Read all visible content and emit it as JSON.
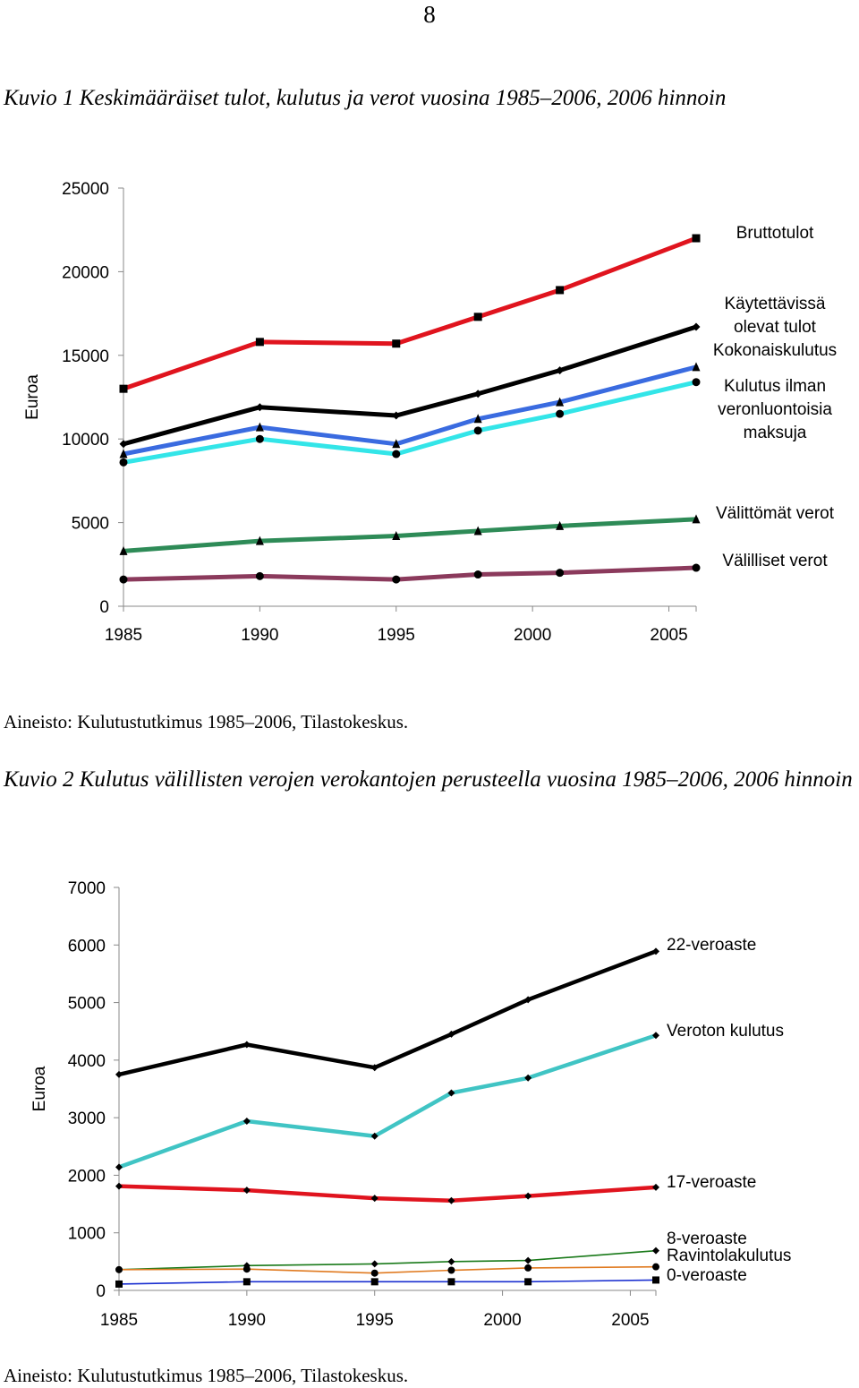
{
  "page": {
    "number": "8"
  },
  "figure1": {
    "title": "Kuvio 1 Keskimääräiset tulot, kulutus ja verot vuosina 1985–2006, 2006 hinnoin",
    "source": "Aineisto: Kulutustutkimus 1985–2006, Tilastokeskus."
  },
  "figure2": {
    "title": "Kuvio 2 Kulutus välillisten verojen verokantojen perusteella vuosina 1985–2006, 2006 hinnoin",
    "source": "Aineisto: Kulutustutkimus 1985–2006, Tilastokeskus."
  },
  "chart_data": [
    {
      "type": "line",
      "title": "",
      "xlabel": "",
      "ylabel": "Euroa",
      "xlim": [
        1985,
        2006
      ],
      "ylim": [
        0,
        25000
      ],
      "x_ticks": [
        "1985",
        "1990",
        "1995",
        "2000",
        "2005"
      ],
      "y_ticks": [
        "0",
        "5000",
        "10000",
        "15000",
        "20000",
        "25000"
      ],
      "grid": false,
      "legend": "right, labels at line ends",
      "x": [
        1985,
        1990,
        1995,
        1998,
        2001,
        2006
      ],
      "series": [
        {
          "name": "Bruttotulot",
          "label_lines": [
            "Bruttotulot"
          ],
          "color": "#e0141e",
          "marker": "square",
          "values": [
            13000,
            15800,
            15700,
            17300,
            18900,
            22000
          ]
        },
        {
          "name": "Käytettävissä olevat tulot",
          "label_lines": [
            "Käytettävissä",
            "olevat tulot"
          ],
          "color": "#000000",
          "marker": "diamond",
          "values": [
            9700,
            11900,
            11400,
            12700,
            14100,
            16700
          ]
        },
        {
          "name": "Kokonaiskulutus",
          "label_lines": [
            "Kokonaiskulutus"
          ],
          "color": "#3a6be0",
          "marker": "triangle",
          "values": [
            9100,
            10700,
            9700,
            11200,
            12200,
            14300
          ]
        },
        {
          "name": "Kulutus ilman veronluontoisia maksuja",
          "label_lines": [
            "Kulutus ilman",
            "veronluontoisia",
            "maksuja"
          ],
          "color": "#33e5e8",
          "marker": "circle",
          "values": [
            8600,
            10000,
            9100,
            10500,
            11500,
            13400
          ]
        },
        {
          "name": "Välittömät verot",
          "label_lines": [
            "Välittömät verot"
          ],
          "color": "#2e8b57",
          "marker": "triangle",
          "values": [
            3300,
            3900,
            4200,
            4500,
            4800,
            5200
          ]
        },
        {
          "name": "Välilliset verot",
          "label_lines": [
            "Välilliset verot"
          ],
          "color": "#8b3a5c",
          "marker": "circle",
          "values": [
            1600,
            1800,
            1600,
            1900,
            2000,
            2300
          ]
        }
      ]
    },
    {
      "type": "line",
      "title": "",
      "xlabel": "",
      "ylabel": "Euroa",
      "xlim": [
        1985,
        2006
      ],
      "ylim": [
        0,
        7000
      ],
      "x_ticks": [
        "1985",
        "1990",
        "1995",
        "2000",
        "2005"
      ],
      "y_ticks": [
        "0",
        "1000",
        "2000",
        "3000",
        "4000",
        "5000",
        "6000",
        "7000"
      ],
      "grid": false,
      "legend": "right, labels at line ends",
      "x": [
        1985,
        1990,
        1995,
        1998,
        2001,
        2006
      ],
      "series": [
        {
          "name": "22-veroaste",
          "label_lines": [
            "22-veroaste"
          ],
          "color": "#000000",
          "marker": "diamond",
          "values": [
            3750,
            4270,
            3870,
            4450,
            5050,
            5890
          ]
        },
        {
          "name": "Veroton kulutus",
          "label_lines": [
            "Veroton kulutus"
          ],
          "color": "#40c4c4",
          "marker": "diamond",
          "values": [
            2140,
            2940,
            2680,
            3430,
            3690,
            4430
          ]
        },
        {
          "name": "17-veroaste",
          "label_lines": [
            "17-veroaste"
          ],
          "color": "#e0141e",
          "marker": "diamond",
          "values": [
            1810,
            1740,
            1600,
            1560,
            1640,
            1790
          ]
        },
        {
          "name": "8-veroaste",
          "label_lines": [
            "8-veroaste"
          ],
          "color": "#1a7a1a",
          "marker": "diamond",
          "values": [
            360,
            430,
            460,
            500,
            520,
            690
          ]
        },
        {
          "name": "Ravintolakulutus",
          "label_lines": [
            "Ravintolakulutus"
          ],
          "color": "#e07a20",
          "marker": "circle",
          "values": [
            360,
            370,
            300,
            350,
            390,
            410
          ]
        },
        {
          "name": "0-veroaste",
          "label_lines": [
            "0-veroaste"
          ],
          "color": "#1a2fd0",
          "marker": "square",
          "values": [
            110,
            150,
            150,
            150,
            150,
            180
          ]
        }
      ]
    }
  ]
}
